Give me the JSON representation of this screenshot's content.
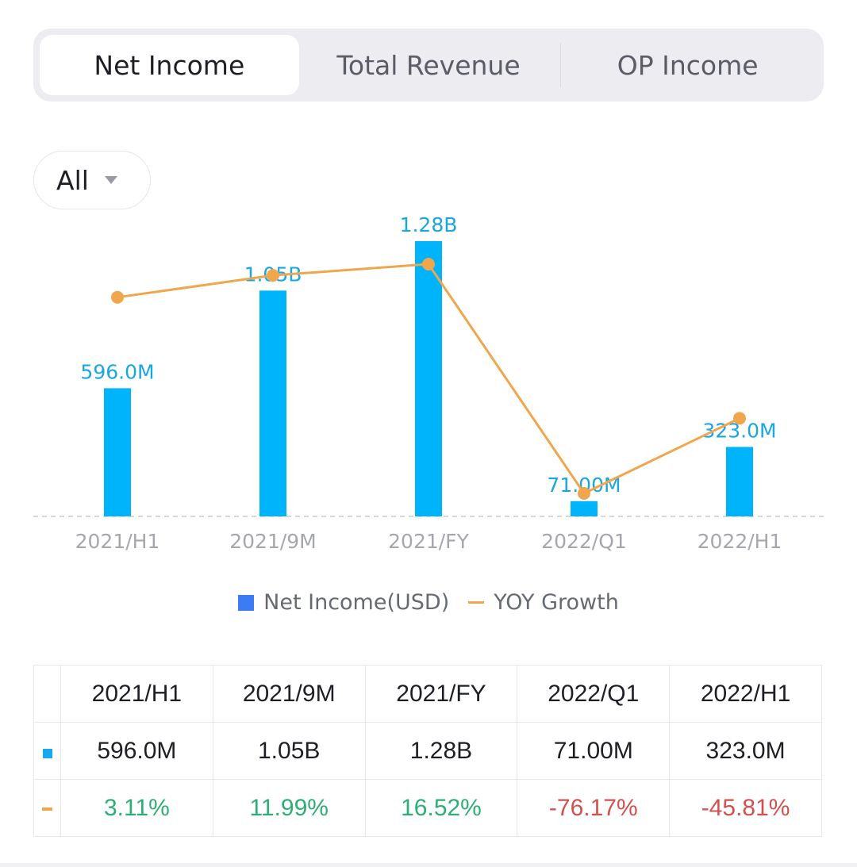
{
  "tabs": [
    {
      "label": "Net Income",
      "active": true
    },
    {
      "label": "Total Revenue",
      "active": false
    },
    {
      "label": "OP Income",
      "active": false
    }
  ],
  "filter": {
    "label": "All"
  },
  "colors": {
    "bar": "#00b4fb",
    "line": "#f0a64c",
    "positive": "#2eae76",
    "negative": "#d2514f"
  },
  "chart_data": {
    "type": "bar",
    "categories": [
      "2021/H1",
      "2021/9M",
      "2021/FY",
      "2022/Q1",
      "2022/H1"
    ],
    "series": [
      {
        "name": "Net Income(USD)",
        "kind": "bar",
        "values": [
          596000000,
          1050000000,
          1280000000,
          71000000,
          323000000
        ],
        "labels": [
          "596.0M",
          "1.05B",
          "1.28B",
          "71.00M",
          "323.0M"
        ]
      },
      {
        "name": "YOY Growth",
        "kind": "line",
        "values": [
          3.11,
          11.99,
          16.52,
          -76.17,
          -45.81
        ],
        "unit": "%"
      }
    ],
    "bar_ylim": [
      0,
      1280000000
    ],
    "line_ylim": [
      -76.17,
      16.52
    ],
    "legend": [
      "Net Income(USD)",
      "YOY Growth"
    ],
    "legend_position": "bottom"
  },
  "legend": {
    "bar_label": "Net Income(USD)",
    "line_label": "YOY Growth"
  },
  "table": {
    "headers": [
      "2021/H1",
      "2021/9M",
      "2021/FY",
      "2022/Q1",
      "2022/H1"
    ],
    "values": [
      "596.0M",
      "1.05B",
      "1.28B",
      "71.00M",
      "323.0M"
    ],
    "growth": [
      "3.11%",
      "11.99%",
      "16.52%",
      "-76.17%",
      "-45.81%"
    ]
  }
}
